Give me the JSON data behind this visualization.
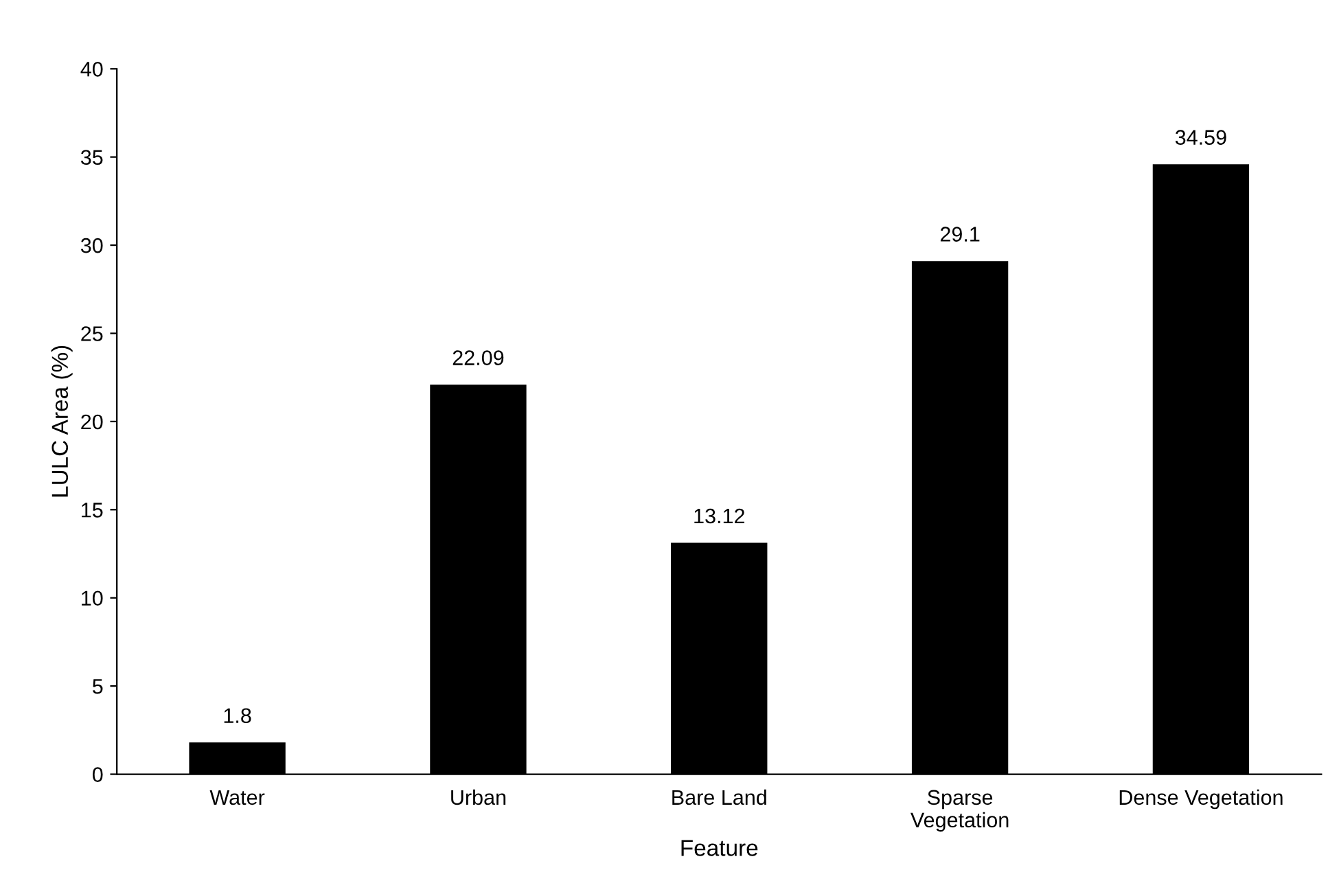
{
  "chart_data": {
    "type": "bar",
    "categories": [
      "Water",
      "Urban",
      "Bare Land",
      "Sparse\nVegetation",
      "Dense Vegetation"
    ],
    "values": [
      1.8,
      22.09,
      13.12,
      29.1,
      34.59
    ],
    "color": "#000000",
    "xlabel": "Feature",
    "ylabel": "LULC Area (%)",
    "ylim": [
      0,
      40
    ],
    "yticks": [
      0,
      5,
      10,
      15,
      20,
      25,
      30,
      35,
      40
    ],
    "data_labels": true,
    "grid": false,
    "legend": false
  }
}
